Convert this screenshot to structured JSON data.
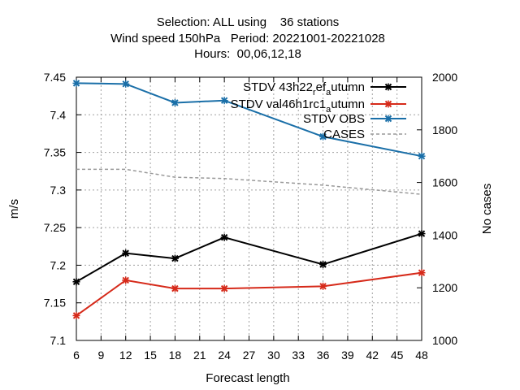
{
  "chart_data": {
    "type": "line",
    "title_lines": [
      "Selection: ALL using    36 stations",
      "Wind speed 150hPa   Period: 20221001-20221028",
      "Hours:  00,06,12,18"
    ],
    "xlabel": "Forecast length",
    "ylabel": "m/s",
    "y2label": "No cases",
    "xlim": [
      6,
      48
    ],
    "ylim": [
      7.1,
      7.45
    ],
    "y2lim": [
      1000,
      2000
    ],
    "x_ticks": [
      "6",
      "9",
      "12",
      "15",
      "18",
      "21",
      "24",
      "27",
      "30",
      "33",
      "36",
      "39",
      "42",
      "45",
      "48"
    ],
    "y_ticks": [
      "7.1",
      "7.15",
      "7.2",
      "7.25",
      "7.3",
      "7.35",
      "7.4",
      "7.45"
    ],
    "y2_ticks": [
      "1000",
      "1200",
      "1400",
      "1600",
      "1800",
      "2000"
    ],
    "grid": true,
    "legend_position": "top-right",
    "series": [
      {
        "name": "STDV 43h22 ref autumn",
        "legend_parts": [
          "STDV 43h22",
          "r",
          "ef",
          "a",
          "utumn"
        ],
        "axis": "y",
        "color": "#000000",
        "marker": "x",
        "x": [
          6,
          12,
          18,
          24,
          36,
          48
        ],
        "y": [
          7.178,
          7.216,
          7.209,
          7.237,
          7.201,
          7.242
        ]
      },
      {
        "name": "STDV val46h1rc1 autumn",
        "legend_parts": [
          "STDV val46h1rc1",
          "a",
          "utumn"
        ],
        "axis": "y",
        "color": "#d62a1a",
        "marker": "x",
        "x": [
          6,
          12,
          18,
          24,
          36,
          48
        ],
        "y": [
          7.133,
          7.18,
          7.169,
          7.169,
          7.172,
          7.19
        ]
      },
      {
        "name": "STDV OBS",
        "legend_parts": [
          "STDV OBS"
        ],
        "axis": "y",
        "color": "#1a6fa8",
        "marker": "x",
        "x": [
          6,
          12,
          18,
          24,
          36,
          48
        ],
        "y": [
          7.442,
          7.441,
          7.416,
          7.419,
          7.371,
          7.345
        ]
      },
      {
        "name": "CASES",
        "legend_parts": [
          "CASES"
        ],
        "axis": "y2",
        "color": "#999999",
        "dashed": true,
        "x": [
          6,
          12,
          18,
          24,
          36,
          48
        ],
        "y": [
          1650,
          1650,
          1620,
          1615,
          1590,
          1555
        ]
      }
    ]
  }
}
